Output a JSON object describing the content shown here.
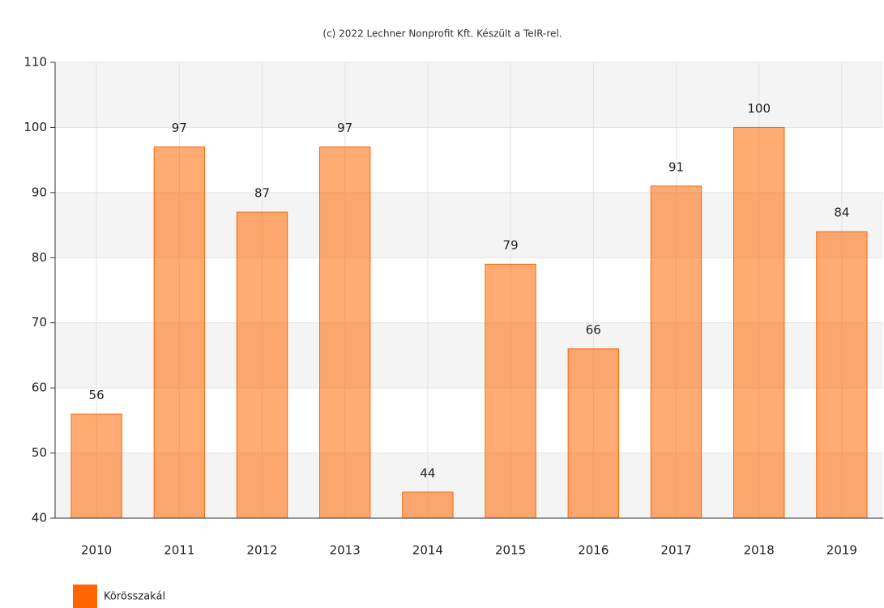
{
  "chart_data": {
    "type": "bar",
    "title": "(c) 2022 Lechner Nonprofit Kft. Készült a TeIR-rel.",
    "categories": [
      "2010",
      "2011",
      "2012",
      "2013",
      "2014",
      "2015",
      "2016",
      "2017",
      "2018",
      "2019"
    ],
    "series": [
      {
        "name": "Körösszakál",
        "color": "#ff6600",
        "values": [
          56,
          97,
          87,
          97,
          44,
          79,
          66,
          91,
          100,
          84
        ]
      }
    ],
    "ylim": [
      40,
      110
    ],
    "yticks": [
      40,
      50,
      60,
      70,
      80,
      90,
      100,
      110
    ],
    "grid": true,
    "legend": "bottom-left"
  }
}
